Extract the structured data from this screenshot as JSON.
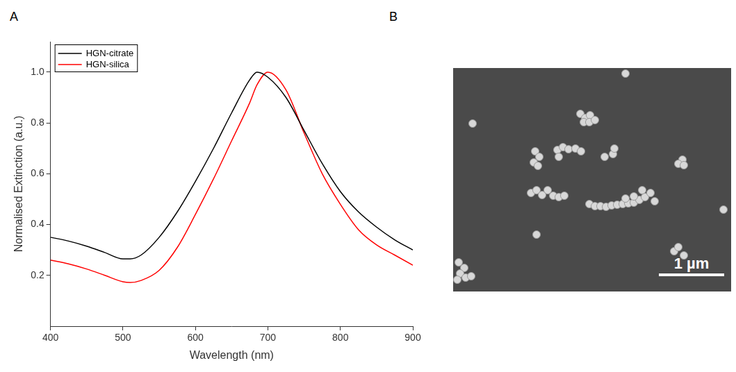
{
  "chart_data": {
    "panel": "A",
    "type": "line",
    "x_label": "Wavelength (nm)",
    "y_label": "Normalised Extinction (a.u.)",
    "x": [
      400,
      425,
      450,
      475,
      500,
      510,
      525,
      550,
      575,
      600,
      625,
      650,
      675,
      685,
      700,
      725,
      750,
      775,
      800,
      825,
      850,
      875,
      900
    ],
    "series": [
      {
        "name": "HGN-citrate",
        "color": "#000000",
        "line_style": "solid",
        "values": [
          0.35,
          0.335,
          0.315,
          0.29,
          0.265,
          0.265,
          0.28,
          0.35,
          0.45,
          0.57,
          0.7,
          0.84,
          0.97,
          1.0,
          0.98,
          0.9,
          0.77,
          0.64,
          0.53,
          0.45,
          0.39,
          0.34,
          0.3
        ]
      },
      {
        "name": "HGN-silica",
        "color": "#ff0000",
        "line_style": "solid",
        "values": [
          0.26,
          0.245,
          0.225,
          0.2,
          0.175,
          0.172,
          0.18,
          0.22,
          0.31,
          0.44,
          0.58,
          0.73,
          0.88,
          0.95,
          1.0,
          0.93,
          0.76,
          0.6,
          0.48,
          0.38,
          0.32,
          0.28,
          0.24
        ]
      }
    ],
    "xlim": [
      400,
      900
    ],
    "xticks": [
      400,
      500,
      600,
      700,
      800,
      900
    ],
    "ylim": [
      0,
      1.12
    ],
    "yticks": [
      0.2,
      0.4,
      0.6,
      0.8,
      {
        "value": 1,
        "label": "1.0"
      }
    ],
    "grid": false,
    "legend": "upper left"
  },
  "image": {
    "panel": "B",
    "scale_bar": "1 µm"
  }
}
